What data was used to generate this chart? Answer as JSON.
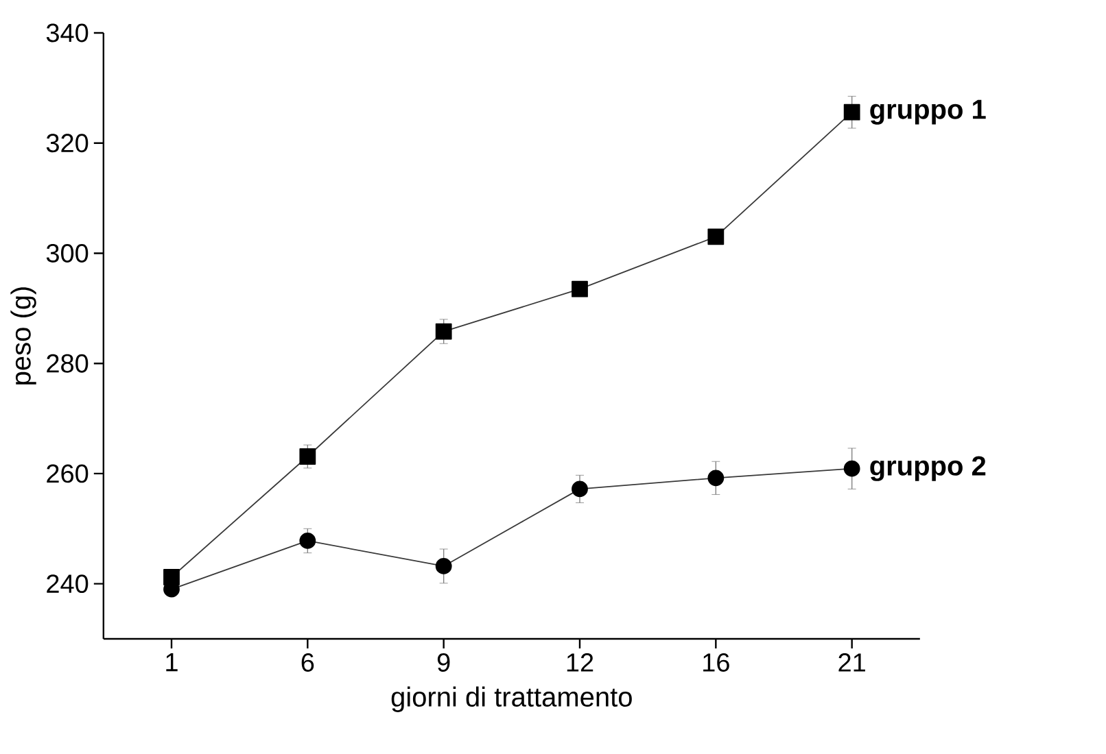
{
  "chart_data": {
    "type": "line",
    "xlabel": "giorni di trattamento",
    "ylabel": "peso (g)",
    "categories": [
      "1",
      "6",
      "9",
      "12",
      "16",
      "21"
    ],
    "series": [
      {
        "name": "gruppo 1",
        "color": "#000000",
        "marker": "square",
        "values": [
          241.2,
          263.1,
          285.8,
          293.5,
          303.0,
          325.6
        ],
        "errors": [
          null,
          2.1,
          2.2,
          null,
          null,
          2.9
        ]
      },
      {
        "name": "gruppo 2",
        "color": "#000000",
        "marker": "circle",
        "values": [
          239.0,
          247.8,
          243.2,
          257.2,
          259.2,
          260.9
        ],
        "errors": [
          null,
          2.2,
          3.1,
          2.5,
          3.0,
          3.7
        ]
      }
    ],
    "ylim": [
      230,
      340
    ],
    "yticks": [
      240,
      260,
      280,
      300,
      320,
      340
    ],
    "grid": false,
    "line_style": "solid"
  }
}
